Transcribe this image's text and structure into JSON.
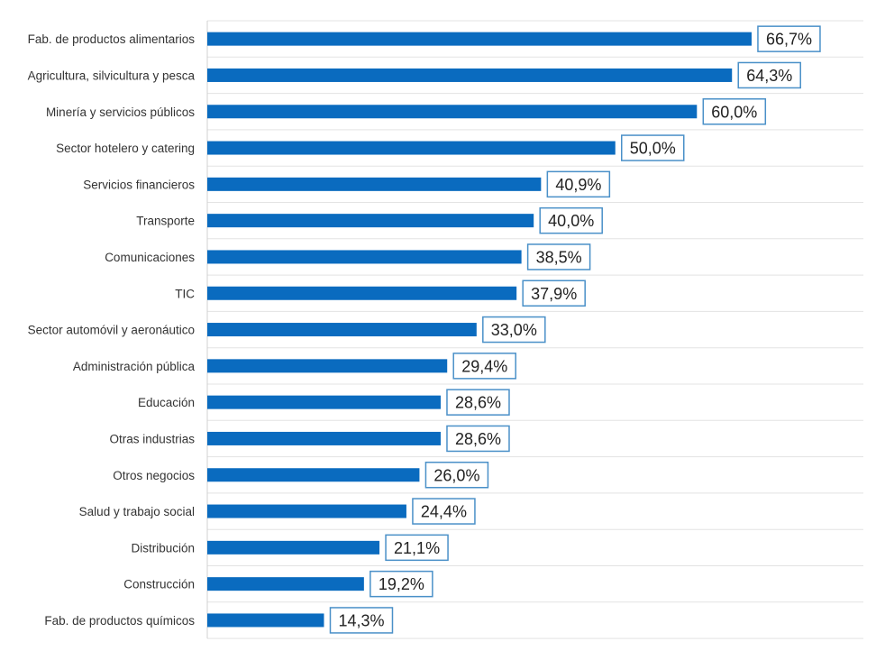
{
  "chart_data": {
    "type": "bar",
    "orientation": "horizontal",
    "categories": [
      "Fab. de productos alimentarios",
      "Agricultura, silvicultura y pesca",
      "Minería y servicios públicos",
      "Sector hotelero y catering",
      "Servicios financieros",
      "Transporte",
      "Comunicaciones",
      "TIC",
      "Sector automóvil y aeronáutico",
      "Administración pública",
      "Educación",
      "Otras industrias",
      "Otros negocios",
      "Salud y trabajo social",
      "Distribución",
      "Construcción",
      "Fab. de productos químicos"
    ],
    "values": [
      66.7,
      64.3,
      60.0,
      50.0,
      40.9,
      40.0,
      38.5,
      37.9,
      33.0,
      29.4,
      28.6,
      28.6,
      26.0,
      24.4,
      21.1,
      19.2,
      14.3
    ],
    "data_labels": [
      "66,7%",
      "64,3%",
      "60,0%",
      "50,0%",
      "40,9%",
      "40,0%",
      "38,5%",
      "37,9%",
      "33,0%",
      "29,4%",
      "28,6%",
      "28,6%",
      "26,0%",
      "24,4%",
      "21,1%",
      "19,2%",
      "14,3%"
    ],
    "xlim": [
      0,
      80
    ],
    "grid": "horizontal",
    "bar_color": "#0a6bbf",
    "label_border_color": "#4a90c8"
  }
}
